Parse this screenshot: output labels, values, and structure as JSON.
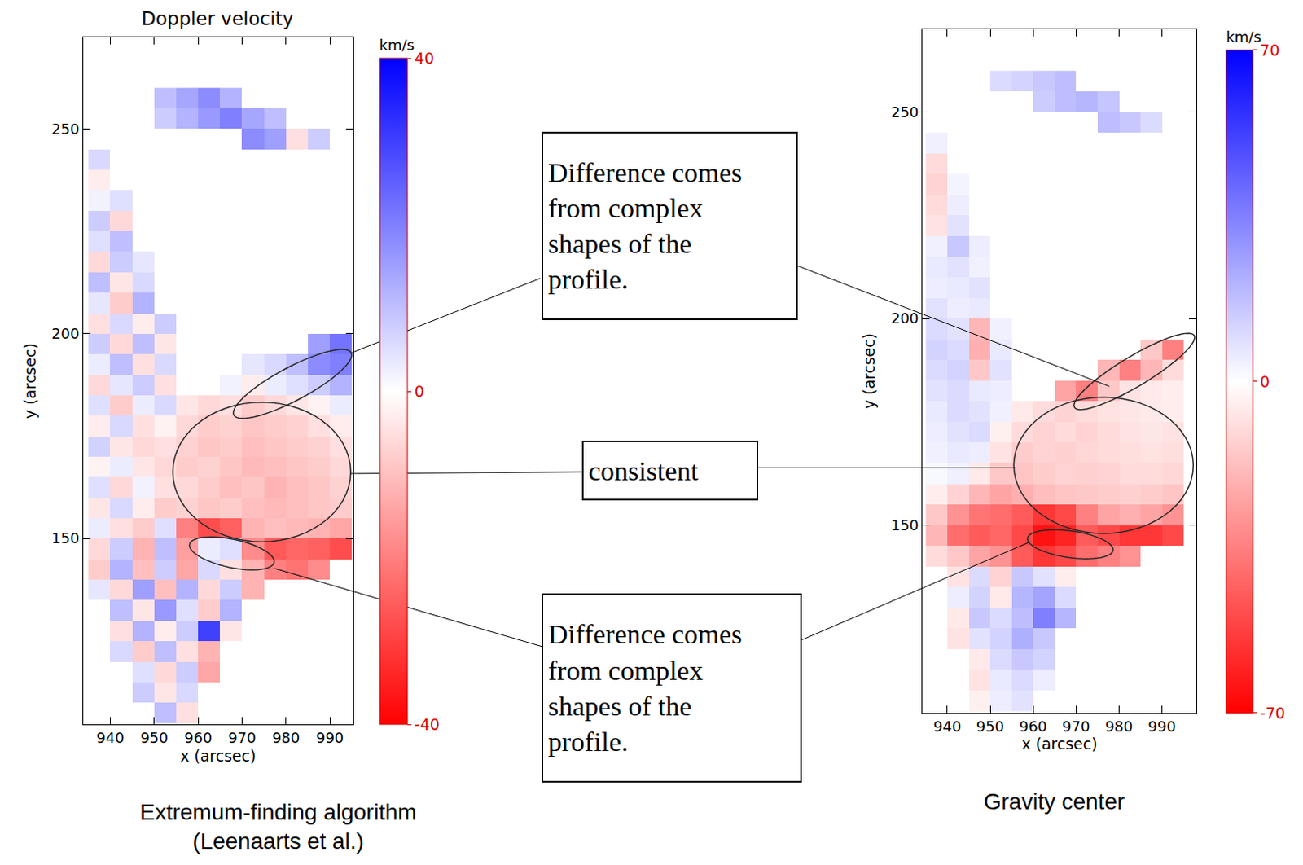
{
  "chart_data": [
    {
      "type": "heatmap",
      "title": "Doppler velocity",
      "caption": [
        "Extremum-finding algorithm",
        "(Leenaarts et al.)"
      ],
      "x_label": "x (arcsec)",
      "y_label": "y (arcsec)",
      "xlim": [
        933.8,
        995.3
      ],
      "ylim": [
        104.6,
        272.3
      ],
      "xticks": [
        940,
        950,
        960,
        970,
        980,
        990
      ],
      "yticks": [
        150,
        200,
        250
      ],
      "colorbar": {
        "title": "km/s",
        "range": [
          -40,
          40
        ],
        "ticks": [
          -40,
          0,
          40
        ]
      },
      "x": [
        937.5,
        942.5,
        947.5,
        952.5,
        957.5,
        962.5,
        967.5,
        972.5,
        977.5,
        982.5,
        987.5,
        992.5
      ],
      "y": [
        257.5,
        252.5,
        247.5,
        242.5,
        237.5,
        232.5,
        227.5,
        222.5,
        217.5,
        212.5,
        207.5,
        202.5,
        197.5,
        192.5,
        187.5,
        182.5,
        177.5,
        172.5,
        167.5,
        162.5,
        157.5,
        152.5,
        147.5,
        142.5,
        137.5,
        132.5,
        127.5,
        122.5,
        117.5,
        112.5,
        107.5
      ],
      "z": [
        [
          null,
          null,
          null,
          10,
          14,
          18,
          12,
          null,
          null,
          null,
          null,
          null
        ],
        [
          null,
          null,
          null,
          8,
          12,
          16,
          20,
          14,
          10,
          null,
          null,
          null
        ],
        [
          null,
          null,
          null,
          null,
          null,
          null,
          null,
          18,
          15,
          -5,
          8,
          null
        ],
        [
          6,
          null,
          null,
          null,
          null,
          null,
          null,
          null,
          null,
          null,
          null,
          null
        ],
        [
          -3,
          null,
          null,
          null,
          null,
          null,
          null,
          null,
          null,
          null,
          null,
          null
        ],
        [
          2,
          5,
          null,
          null,
          null,
          null,
          null,
          null,
          null,
          null,
          null,
          null
        ],
        [
          8,
          -6,
          null,
          null,
          null,
          null,
          null,
          null,
          null,
          null,
          null,
          null
        ],
        [
          5,
          10,
          null,
          null,
          null,
          null,
          null,
          null,
          null,
          null,
          null,
          null
        ],
        [
          -6,
          8,
          4,
          null,
          null,
          null,
          null,
          null,
          null,
          null,
          null,
          null
        ],
        [
          10,
          -4,
          6,
          null,
          null,
          null,
          null,
          null,
          null,
          null,
          null,
          null
        ],
        [
          4,
          -8,
          12,
          null,
          null,
          null,
          null,
          null,
          null,
          null,
          null,
          null
        ],
        [
          -5,
          6,
          -3,
          8,
          null,
          null,
          null,
          null,
          null,
          null,
          null,
          null
        ],
        [
          8,
          -6,
          10,
          -4,
          null,
          null,
          null,
          null,
          null,
          null,
          15,
          22
        ],
        [
          3,
          10,
          -5,
          6,
          null,
          null,
          null,
          4,
          6,
          10,
          18,
          20
        ],
        [
          -6,
          4,
          8,
          -5,
          null,
          null,
          2,
          -3,
          3,
          5,
          8,
          12
        ],
        [
          5,
          -8,
          3,
          6,
          -4,
          -6,
          -5,
          -8,
          -6,
          -4,
          -2,
          3
        ],
        [
          -3,
          6,
          -5,
          -2,
          -6,
          -8,
          -7,
          -9,
          -8,
          -7,
          -5,
          -3
        ],
        [
          7,
          -4,
          -6,
          -5,
          -7,
          -9,
          -8,
          -10,
          -9,
          -8,
          -7,
          -5
        ],
        [
          -2,
          3,
          -4,
          -6,
          -8,
          -7,
          -9,
          -11,
          -10,
          -9,
          -8,
          -6
        ],
        [
          5,
          -6,
          2,
          -5,
          -6,
          -8,
          -10,
          -9,
          -12,
          -10,
          -9,
          -7
        ],
        [
          -4,
          6,
          -3,
          -8,
          -7,
          -9,
          -8,
          -10,
          -11,
          -10,
          -9,
          -8
        ],
        [
          3,
          -5,
          -8,
          5,
          -20,
          -28,
          -25,
          -12,
          -10,
          -11,
          -12,
          -14
        ],
        [
          -6,
          8,
          -12,
          10,
          -15,
          3,
          5,
          -18,
          -26,
          -24,
          -25,
          -28
        ],
        [
          -8,
          12,
          -10,
          8,
          -14,
          6,
          -5,
          -12,
          -20,
          -22,
          -18,
          null
        ],
        [
          4,
          -6,
          15,
          -10,
          12,
          -6,
          8,
          -12,
          null,
          null,
          null,
          null
        ],
        [
          null,
          10,
          -4,
          16,
          5,
          -8,
          12,
          null,
          null,
          null,
          null,
          null
        ],
        [
          null,
          -5,
          12,
          -3,
          8,
          30,
          -4,
          null,
          null,
          null,
          null,
          null
        ],
        [
          null,
          6,
          -8,
          10,
          -5,
          -12,
          null,
          null,
          null,
          null,
          null,
          null
        ],
        [
          null,
          null,
          5,
          -6,
          8,
          -14,
          null,
          null,
          null,
          null,
          null,
          null
        ],
        [
          null,
          null,
          8,
          -4,
          6,
          null,
          null,
          null,
          null,
          null,
          null,
          null
        ],
        [
          null,
          null,
          null,
          10,
          -5,
          null,
          null,
          null,
          null,
          null,
          null,
          null
        ]
      ]
    },
    {
      "type": "heatmap",
      "caption": [
        "Gravity center"
      ],
      "x_label": "x (arcsec)",
      "y_label": "y (arcsec)",
      "xlim": [
        934.2,
        998.1
      ],
      "ylim": [
        104.5,
        270.1
      ],
      "xticks": [
        940,
        950,
        960,
        970,
        980,
        990
      ],
      "yticks": [
        150,
        200,
        250
      ],
      "colorbar": {
        "title": "km/s",
        "range": [
          -70,
          70
        ],
        "ticks": [
          -70,
          0,
          70
        ]
      },
      "x": [
        937.5,
        942.5,
        947.5,
        952.5,
        957.5,
        962.5,
        967.5,
        972.5,
        977.5,
        982.5,
        987.5,
        992.5
      ],
      "y": [
        257.5,
        252.5,
        247.5,
        242.5,
        237.5,
        232.5,
        227.5,
        222.5,
        217.5,
        212.5,
        207.5,
        202.5,
        197.5,
        192.5,
        187.5,
        182.5,
        177.5,
        172.5,
        167.5,
        162.5,
        157.5,
        152.5,
        147.5,
        142.5,
        137.5,
        132.5,
        127.5,
        122.5,
        117.5,
        112.5,
        107.5
      ],
      "z": [
        [
          null,
          null,
          null,
          10,
          12,
          15,
          18,
          null,
          null,
          null,
          null,
          null
        ],
        [
          null,
          null,
          null,
          null,
          null,
          14,
          18,
          20,
          16,
          null,
          null,
          null
        ],
        [
          null,
          null,
          null,
          null,
          null,
          null,
          null,
          null,
          18,
          15,
          10,
          null
        ],
        [
          4,
          null,
          null,
          null,
          null,
          null,
          null,
          null,
          null,
          null,
          null,
          null
        ],
        [
          -10,
          null,
          null,
          null,
          null,
          null,
          null,
          null,
          null,
          null,
          null,
          null
        ],
        [
          -12,
          3,
          null,
          null,
          null,
          null,
          null,
          null,
          null,
          null,
          null,
          null
        ],
        [
          -10,
          5,
          null,
          null,
          null,
          null,
          null,
          null,
          null,
          null,
          null,
          null
        ],
        [
          -8,
          8,
          null,
          null,
          null,
          null,
          null,
          null,
          null,
          null,
          null,
          null
        ],
        [
          4,
          15,
          5,
          null,
          null,
          null,
          null,
          null,
          null,
          null,
          null,
          null
        ],
        [
          6,
          8,
          4,
          null,
          null,
          null,
          null,
          null,
          null,
          null,
          null,
          null
        ],
        [
          5,
          6,
          8,
          null,
          null,
          null,
          null,
          null,
          null,
          null,
          null,
          null
        ],
        [
          8,
          5,
          6,
          null,
          null,
          null,
          null,
          null,
          null,
          null,
          null,
          null
        ],
        [
          10,
          8,
          -20,
          4,
          null,
          null,
          null,
          null,
          null,
          null,
          null,
          null
        ],
        [
          12,
          10,
          -22,
          6,
          null,
          null,
          null,
          null,
          null,
          null,
          -15,
          -35
        ],
        [
          10,
          12,
          -15,
          8,
          null,
          null,
          null,
          null,
          -20,
          -35,
          -20,
          -10
        ],
        [
          8,
          10,
          6,
          5,
          null,
          null,
          -25,
          -35,
          -15,
          -8,
          -6,
          -5
        ],
        [
          6,
          10,
          8,
          4,
          -6,
          -10,
          -12,
          -10,
          -8,
          -7,
          -6,
          -5
        ],
        [
          5,
          8,
          10,
          -4,
          -10,
          -12,
          -10,
          -12,
          -10,
          -8,
          -7,
          -8
        ],
        [
          4,
          6,
          5,
          -8,
          -14,
          -12,
          -13,
          -11,
          -10,
          -9,
          -8,
          -9
        ],
        [
          2,
          4,
          -6,
          -15,
          -16,
          -14,
          -12,
          -13,
          -12,
          -10,
          -10,
          -11
        ],
        [
          -5,
          -12,
          -20,
          -25,
          -22,
          -18,
          -16,
          -15,
          -14,
          -13,
          -14,
          -16
        ],
        [
          -15,
          -30,
          -38,
          -40,
          -45,
          -55,
          -50,
          -35,
          -25,
          -22,
          -25,
          -30
        ],
        [
          -20,
          -40,
          -45,
          -42,
          -50,
          -65,
          -60,
          -45,
          -50,
          -55,
          -55,
          -50
        ],
        [
          -10,
          -15,
          -25,
          -30,
          -45,
          -55,
          -50,
          -40,
          -35,
          -30,
          null,
          null
        ],
        [
          null,
          -8,
          10,
          -12,
          15,
          8,
          -5,
          null,
          null,
          null,
          null,
          null
        ],
        [
          null,
          5,
          12,
          -6,
          20,
          25,
          10,
          null,
          null,
          null,
          null,
          null
        ],
        [
          null,
          -6,
          15,
          10,
          18,
          35,
          20,
          null,
          null,
          null,
          null,
          null
        ],
        [
          null,
          -8,
          8,
          12,
          22,
          15,
          null,
          null,
          null,
          null,
          null,
          null
        ],
        [
          null,
          null,
          -6,
          10,
          15,
          12,
          null,
          null,
          null,
          null,
          null,
          null
        ],
        [
          null,
          null,
          -8,
          6,
          10,
          5,
          null,
          null,
          null,
          null,
          null,
          null
        ],
        [
          null,
          null,
          -4,
          5,
          8,
          null,
          null,
          null,
          null,
          null,
          null,
          null
        ]
      ]
    }
  ],
  "annotations": [
    {
      "text": [
        "Difference comes",
        "from complex",
        "shapes of the",
        "profile."
      ]
    },
    {
      "text": [
        "consistent"
      ]
    },
    {
      "text": [
        "Difference comes",
        "from complex",
        "shapes of the",
        "profile."
      ]
    }
  ]
}
